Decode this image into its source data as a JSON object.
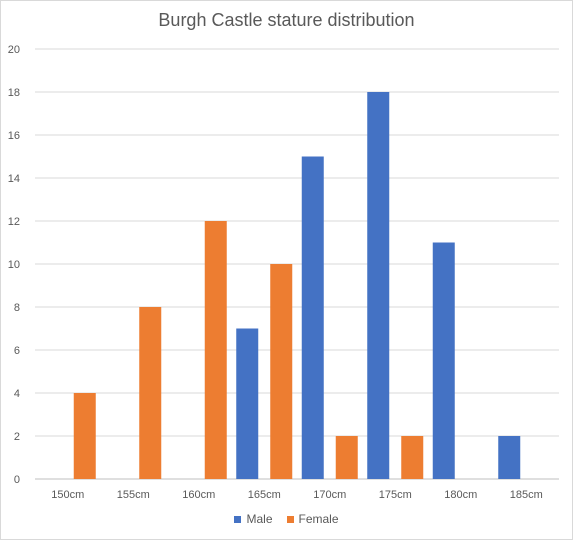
{
  "chart_data": {
    "type": "bar",
    "title": "Burgh Castle stature distribution",
    "categories": [
      "150cm",
      "155cm",
      "160cm",
      "165cm",
      "170cm",
      "175cm",
      "180cm",
      "185cm"
    ],
    "series": [
      {
        "name": "Male",
        "color": "#4472c4",
        "values": [
          0,
          0,
          0,
          7,
          15,
          18,
          11,
          2
        ]
      },
      {
        "name": "Female",
        "color": "#ed7d31",
        "values": [
          4,
          8,
          12,
          10,
          2,
          2,
          0,
          0
        ]
      }
    ],
    "ylim": [
      0,
      20
    ],
    "yticks": [
      0,
      2,
      4,
      6,
      8,
      10,
      12,
      14,
      16,
      18,
      20
    ],
    "grid": true,
    "legend_position": "bottom"
  }
}
